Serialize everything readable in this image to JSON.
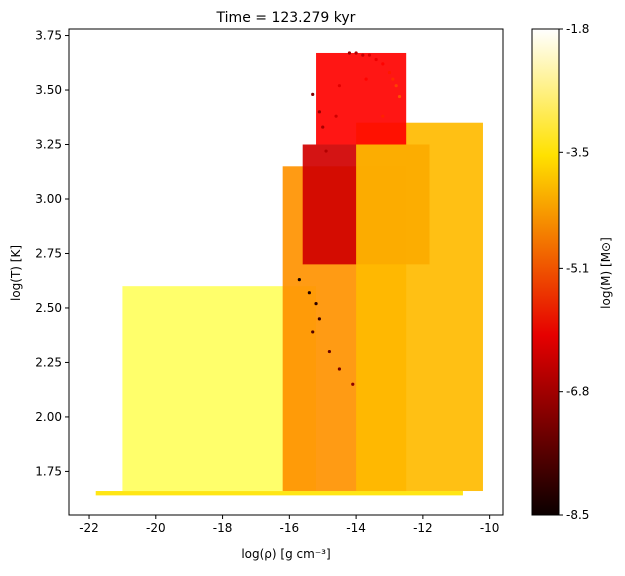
{
  "chart_data": {
    "type": "scatter",
    "title": "Time = 123.279 kyr",
    "xlabel": "log(ρ) [g cm⁻³]",
    "ylabel": "log(T) [K]",
    "xlim": [
      -22.6,
      -9.6
    ],
    "ylim": [
      1.55,
      3.78
    ],
    "xticks": [
      "-22",
      "-20",
      "-18",
      "-16",
      "-14",
      "-12",
      "-10"
    ],
    "xtick_values": [
      -22,
      -20,
      -18,
      -16,
      -14,
      -12,
      -10
    ],
    "yticks": [
      "1.75",
      "2.00",
      "2.25",
      "2.50",
      "2.75",
      "3.00",
      "3.25",
      "3.50",
      "3.75"
    ],
    "ytick_values": [
      1.75,
      2.0,
      2.25,
      2.5,
      2.75,
      3.0,
      3.25,
      3.5,
      3.75
    ],
    "colorbar": {
      "label": "log(M) [M⊙]",
      "colormap": "hot",
      "range": [
        -8.5,
        -1.8
      ],
      "ticks": [
        "-1.8",
        "-3.5",
        "-5.1",
        "-6.8",
        "-8.5"
      ],
      "tick_values": [
        -1.8,
        -3.5,
        -5.1,
        -6.8,
        -8.5
      ]
    },
    "grid": false,
    "regions": [
      {
        "name": "floor",
        "x": [
          -21.8,
          -10.8
        ],
        "y": [
          1.64,
          1.66
        ],
        "logM": -3.8
      },
      {
        "name": "left-wing",
        "x": [
          -21.0,
          -15.2
        ],
        "y": [
          1.66,
          2.6
        ],
        "logM": -2.9
      },
      {
        "name": "central-column",
        "x": [
          -16.2,
          -12.5
        ],
        "y": [
          1.66,
          3.15
        ],
        "logM": -4.6
      },
      {
        "name": "upper-ridge",
        "x": [
          -15.6,
          -11.8
        ],
        "y": [
          2.7,
          3.25
        ],
        "logM": -6.5
      },
      {
        "name": "right-fan",
        "x": [
          -14.0,
          -10.2
        ],
        "y": [
          1.66,
          3.35
        ],
        "logM": -4.2
      },
      {
        "name": "hot-plume",
        "x": [
          -15.2,
          -12.5
        ],
        "y": [
          3.25,
          3.67
        ],
        "logM": -6.0
      }
    ],
    "series": [
      {
        "x": [
          -14.2,
          -14.0,
          -13.8,
          -13.6,
          -13.4,
          -13.2,
          -13.0,
          -12.9,
          -12.8,
          -12.7
        ],
        "y": [
          3.67,
          3.67,
          3.66,
          3.66,
          3.64,
          3.62,
          3.58,
          3.55,
          3.52,
          3.47
        ],
        "logM": [
          -7.0,
          -6.8,
          -6.6,
          -6.4,
          -6.2,
          -6.0,
          -5.8,
          -5.6,
          -5.4,
          -5.2
        ]
      },
      {
        "x": [
          -15.3,
          -15.1,
          -15.0,
          -14.9,
          -14.6,
          -14.5,
          -13.7,
          -13.2
        ],
        "y": [
          3.48,
          3.4,
          3.33,
          3.22,
          3.38,
          3.52,
          3.55,
          3.38
        ],
        "logM": [
          -7.3,
          -7.1,
          -6.9,
          -6.8,
          -6.5,
          -6.3,
          -6.0,
          -5.7
        ]
      },
      {
        "x": [
          -15.7,
          -15.4,
          -15.2,
          -15.1,
          -15.3,
          -14.8,
          -14.5,
          -14.1
        ],
        "y": [
          2.63,
          2.57,
          2.52,
          2.45,
          2.39,
          2.3,
          2.22,
          2.15
        ],
        "logM": [
          -8.4,
          -8.3,
          -8.2,
          -8.0,
          -7.8,
          -7.6,
          -7.4,
          -7.2
        ]
      }
    ]
  }
}
